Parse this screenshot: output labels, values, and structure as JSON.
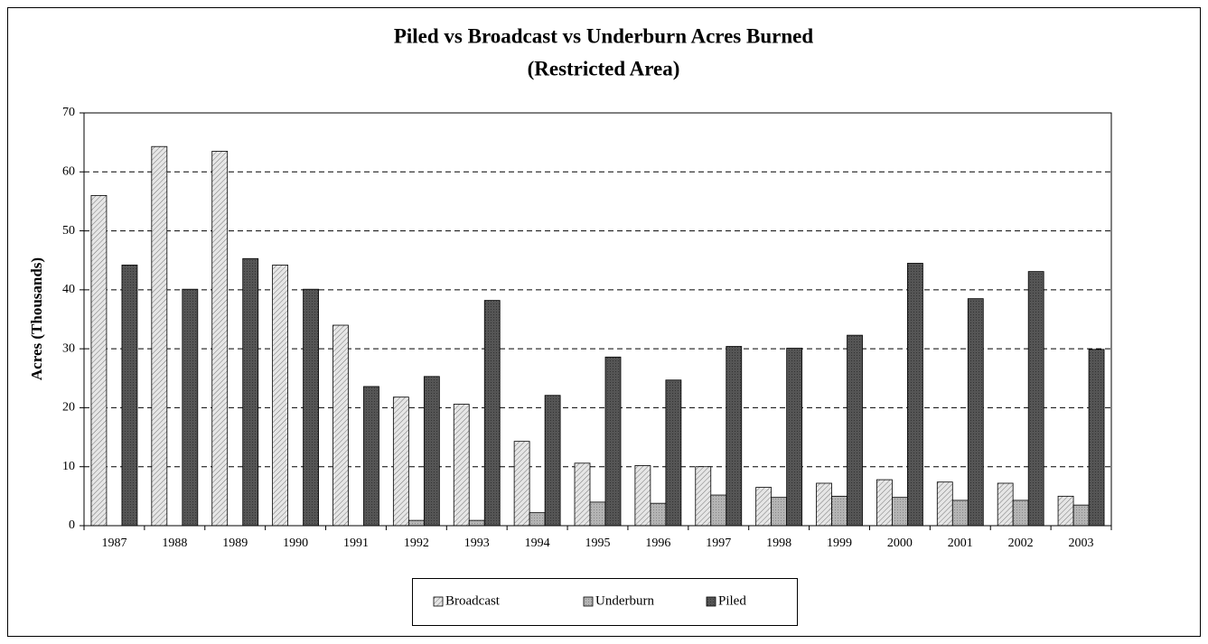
{
  "chart_data": {
    "type": "bar",
    "title": "Piled vs Broadcast vs Underburn Acres Burned",
    "subtitle": "(Restricted Area)",
    "y_label": "Acres (Thousands)",
    "categories": [
      "1987",
      "1988",
      "1989",
      "1990",
      "1991",
      "1992",
      "1993",
      "1994",
      "1995",
      "1996",
      "1997",
      "1998",
      "1999",
      "2000",
      "2001",
      "2002",
      "2003"
    ],
    "series": [
      {
        "name": "Broadcast",
        "color": "#e6e6e6",
        "values": [
          56,
          64.3,
          63.5,
          44.2,
          34,
          21.8,
          20.6,
          14.3,
          10.6,
          10.2,
          10,
          6.5,
          7.2,
          7.8,
          7.4,
          7.2,
          5
        ]
      },
      {
        "name": "Underburn",
        "color": "#b4b4b4",
        "values": [
          0,
          0,
          0,
          0,
          0,
          0.9,
          0.9,
          2.2,
          4,
          3.8,
          5.2,
          4.8,
          5,
          4.8,
          4.3,
          4.3,
          3.5
        ]
      },
      {
        "name": "Piled",
        "color": "#555555",
        "values": [
          44.2,
          40.1,
          45.3,
          40.1,
          23.6,
          25.3,
          38.2,
          22.1,
          28.6,
          24.7,
          30.4,
          30.1,
          32.3,
          44.5,
          38.5,
          43.1,
          29.9
        ]
      }
    ],
    "ylim": [
      0,
      70
    ],
    "yticks": [
      0,
      10,
      20,
      30,
      40,
      50,
      60,
      70
    ],
    "grid": true,
    "legend": "bottom"
  }
}
